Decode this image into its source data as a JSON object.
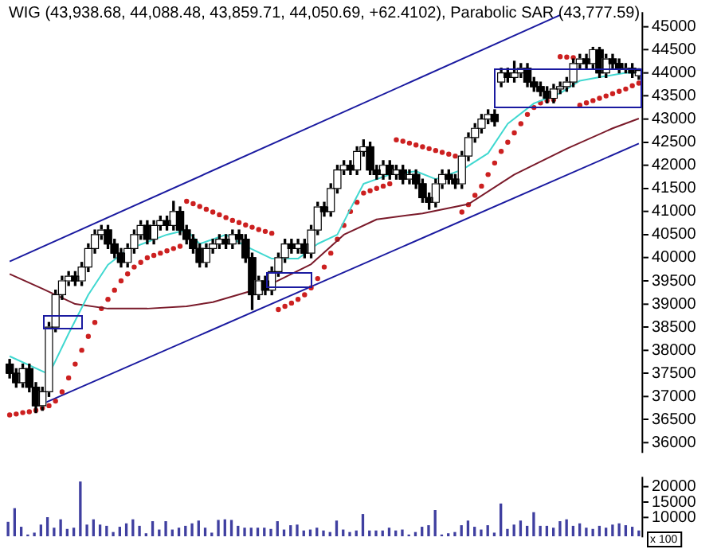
{
  "chart_data": [
    {
      "type": "candlestick",
      "title": "WIG (43,938.68, 44,088.48, 43,859.71, 44,050.69, +62.4102), Parabolic SAR (43,777.59)",
      "color": "#000000",
      "colors": [
        "#000000",
        "#000000",
        "#ffffff",
        "#000000",
        "#000000",
        "#ffffff",
        "#ffffff",
        "#ffffff",
        "#ffffff",
        "#ffffff",
        "#000000",
        "#ffffff",
        "#ffffff",
        "#ffffff",
        "#ffffff",
        "#000000",
        "#000000",
        "#000000",
        "#ffffff",
        "#ffffff",
        "#ffffff",
        "#000000",
        "#ffffff",
        "#ffffff",
        "#000000",
        "#ffffff",
        "#000000",
        "#000000",
        "#000000",
        "#000000",
        "#ffffff",
        "#ffffff",
        "#ffffff",
        "#000000",
        "#ffffff",
        "#000000",
        "#000000",
        "#000000",
        "#ffffff",
        "#000000",
        "#ffffff",
        "#ffffff",
        "#ffffff",
        "#000000",
        "#ffffff",
        "#000000",
        "#ffffff",
        "#ffffff",
        "#000000",
        "#ffffff",
        "#ffffff",
        "#ffffff",
        "#000000",
        "#ffffff",
        "#ffffff",
        "#000000",
        "#000000",
        "#ffffff",
        "#000000",
        "#ffffff",
        "#000000",
        "#ffffff",
        "#000000",
        "#000000",
        "#000000",
        "#ffffff",
        "#ffffff",
        "#000000",
        "#000000",
        "#ffffff",
        "#ffffff",
        "#ffffff",
        "#ffffff",
        "#ffffff",
        "#000000",
        "#ffffff",
        "#000000",
        "#ffffff",
        "#ffffff",
        "#000000",
        "#000000",
        "#000000",
        "#000000",
        "#ffffff",
        "#ffffff",
        "#ffffff",
        "#ffffff",
        "#ffffff",
        "#000000",
        "#ffffff",
        "#000000",
        "#ffffff",
        "#000000",
        "#000000",
        "#ffffff",
        "#000000",
        "#ffffff"
      ],
      "categories": [
        null,
        null,
        null,
        null,
        null,
        null,
        null,
        null,
        null,
        null,
        null,
        null,
        null,
        null,
        null,
        null,
        null,
        null,
        null,
        null,
        null,
        null,
        null,
        null,
        null,
        null,
        null,
        null,
        null,
        null,
        null,
        null,
        null,
        null,
        null,
        null,
        null,
        null,
        null,
        null,
        null,
        null,
        null,
        null,
        null,
        null,
        null,
        null,
        null,
        null,
        null,
        null,
        null,
        null,
        null,
        null,
        null,
        null,
        null,
        null,
        null,
        null,
        null,
        null,
        null,
        null,
        null,
        null,
        null,
        null,
        null,
        null,
        null,
        null,
        null,
        null,
        null,
        null,
        null,
        null,
        null,
        null,
        null,
        null,
        null,
        null,
        null,
        null,
        null,
        null,
        null,
        null,
        null,
        null,
        null,
        null,
        null
      ],
      "ohlc": [
        [
          37700,
          37800,
          37400,
          37500
        ],
        [
          37500,
          37600,
          37200,
          37300
        ],
        [
          37300,
          37700,
          37200,
          37600
        ],
        [
          37600,
          37700,
          37100,
          37200
        ],
        [
          37200,
          37300,
          36650,
          36800
        ],
        [
          36800,
          37200,
          36700,
          37100
        ],
        [
          37100,
          38600,
          37000,
          38500
        ],
        [
          38500,
          39300,
          38400,
          39200
        ],
        [
          39200,
          39600,
          39100,
          39500
        ],
        [
          39500,
          39700,
          39400,
          39600
        ],
        [
          39600,
          39700,
          39400,
          39500
        ],
        [
          39500,
          39900,
          39400,
          39800
        ],
        [
          39800,
          40300,
          39700,
          40200
        ],
        [
          40200,
          40600,
          40100,
          40500
        ],
        [
          40500,
          40700,
          40400,
          40600
        ],
        [
          40600,
          40700,
          40200,
          40300
        ],
        [
          40300,
          40400,
          40000,
          40100
        ],
        [
          40100,
          40200,
          39800,
          39900
        ],
        [
          39900,
          40300,
          39800,
          40200
        ],
        [
          40200,
          40600,
          40100,
          40500
        ],
        [
          40500,
          40800,
          40400,
          40700
        ],
        [
          40700,
          40800,
          40300,
          40400
        ],
        [
          40400,
          40800,
          40300,
          40700
        ],
        [
          40700,
          40900,
          40600,
          40800
        ],
        [
          40800,
          40900,
          40600,
          40700
        ],
        [
          40700,
          41220,
          40600,
          41000
        ],
        [
          41000,
          41100,
          40500,
          40600
        ],
        [
          40600,
          40700,
          40300,
          40400
        ],
        [
          40400,
          40500,
          40100,
          40200
        ],
        [
          40200,
          40300,
          39800,
          39900
        ],
        [
          39900,
          40300,
          39800,
          40200
        ],
        [
          40200,
          40400,
          40100,
          40300
        ],
        [
          40300,
          40500,
          40200,
          40400
        ],
        [
          40400,
          40500,
          40200,
          40300
        ],
        [
          40300,
          40600,
          40200,
          40500
        ],
        [
          40500,
          40600,
          40300,
          40400
        ],
        [
          40400,
          40500,
          39900,
          40000
        ],
        [
          40000,
          40100,
          38880,
          39200
        ],
        [
          39200,
          39600,
          39100,
          39500
        ],
        [
          39500,
          39600,
          39200,
          39300
        ],
        [
          39300,
          39800,
          39200,
          39700
        ],
        [
          39700,
          40100,
          39600,
          40000
        ],
        [
          40000,
          40400,
          39900,
          40300
        ],
        [
          40300,
          40400,
          40100,
          40200
        ],
        [
          40200,
          40400,
          40100,
          40300
        ],
        [
          40300,
          40400,
          40000,
          40100
        ],
        [
          40100,
          40700,
          40000,
          40600
        ],
        [
          40600,
          41200,
          40500,
          41100
        ],
        [
          41100,
          41200,
          40900,
          41000
        ],
        [
          41000,
          41600,
          40900,
          41500
        ],
        [
          41500,
          42000,
          41400,
          41900
        ],
        [
          41900,
          42100,
          41800,
          42000
        ],
        [
          42000,
          42100,
          41800,
          41900
        ],
        [
          41900,
          42400,
          41800,
          42300
        ],
        [
          42300,
          42550,
          42200,
          42400
        ],
        [
          42400,
          42500,
          41800,
          41900
        ],
        [
          41900,
          42000,
          41700,
          41800
        ],
        [
          41800,
          42100,
          41700,
          42000
        ],
        [
          42000,
          42100,
          41700,
          41800
        ],
        [
          41800,
          42000,
          41700,
          41900
        ],
        [
          41900,
          42000,
          41600,
          41700
        ],
        [
          41700,
          41900,
          41600,
          41800
        ],
        [
          41800,
          41900,
          41500,
          41600
        ],
        [
          41600,
          41700,
          41200,
          41300
        ],
        [
          41300,
          41400,
          41050,
          41200
        ],
        [
          41200,
          41700,
          41100,
          41600
        ],
        [
          41600,
          41900,
          41500,
          41800
        ],
        [
          41800,
          41900,
          41600,
          41700
        ],
        [
          41700,
          41800,
          41500,
          41600
        ],
        [
          41600,
          42300,
          41500,
          42200
        ],
        [
          42200,
          42700,
          42100,
          42600
        ],
        [
          42600,
          42900,
          42500,
          42800
        ],
        [
          42800,
          43100,
          42700,
          43000
        ],
        [
          43000,
          43200,
          42900,
          43100
        ],
        [
          43100,
          43200,
          42850,
          42950
        ],
        [
          43800,
          44100,
          43700,
          44000
        ],
        [
          44000,
          44100,
          43800,
          43900
        ],
        [
          43900,
          44250,
          43800,
          44000
        ],
        [
          44000,
          44200,
          43900,
          44100
        ],
        [
          44100,
          44200,
          43700,
          43800
        ],
        [
          43800,
          43900,
          43600,
          43700
        ],
        [
          43700,
          43800,
          43500,
          43600
        ],
        [
          43600,
          43700,
          43350,
          43450
        ],
        [
          43450,
          43750,
          43350,
          43650
        ],
        [
          43650,
          43800,
          43550,
          43700
        ],
        [
          43700,
          43900,
          43600,
          43800
        ],
        [
          43800,
          44300,
          43700,
          44200
        ],
        [
          44200,
          44400,
          44100,
          44300
        ],
        [
          44300,
          44400,
          44100,
          44200
        ],
        [
          44200,
          44550,
          44100,
          44500
        ],
        [
          44500,
          44550,
          43900,
          44000
        ],
        [
          44000,
          44400,
          43900,
          44300
        ],
        [
          44300,
          44400,
          44100,
          44200
        ],
        [
          44200,
          44300,
          44000,
          44100
        ],
        [
          44100,
          44200,
          44000,
          44100
        ],
        [
          44100,
          44200,
          43900,
          44000
        ],
        [
          43938.68,
          44088.48,
          43859.71,
          44050.69
        ]
      ],
      "series": [
        {
          "type": "line",
          "color": "#40d8d0",
          "values": [
            37870,
            null,
            null,
            null,
            null,
            null,
            37480,
            null,
            null,
            38360,
            null,
            null,
            39200,
            null,
            null,
            39850,
            null,
            null,
            40180,
            null,
            null,
            null,
            null,
            null,
            40500,
            null,
            null,
            40600,
            null,
            40300,
            null,
            null,
            null,
            40500,
            null,
            null,
            40250,
            null,
            null,
            null,
            39980,
            null,
            null,
            null,
            39980,
            null,
            null,
            40300,
            null,
            null,
            40500,
            null,
            41060,
            null,
            41600,
            null,
            null,
            null,
            41800,
            null,
            null,
            null,
            41870,
            null,
            null,
            41700,
            null,
            null,
            null,
            41900,
            null,
            null,
            null,
            42260,
            null,
            null,
            42900,
            null,
            null,
            null,
            43340,
            null,
            null,
            null,
            43560,
            null,
            null,
            43830,
            null,
            null,
            null,
            43930,
            null,
            null,
            44000,
            null,
            44000
          ]
        },
        {
          "type": "line",
          "color": "#7a1a2a",
          "values": [
            39650,
            null,
            null,
            null,
            null,
            39330,
            null,
            null,
            null,
            null,
            39000,
            null,
            null,
            null,
            null,
            38900,
            null,
            null,
            null,
            null,
            null,
            38900,
            null,
            null,
            null,
            null,
            null,
            38950,
            null,
            null,
            null,
            39040,
            null,
            null,
            null,
            null,
            null,
            null,
            null,
            39370,
            null,
            null,
            null,
            null,
            null,
            null,
            39860,
            null,
            null,
            null,
            null,
            40500,
            null,
            null,
            null,
            null,
            40830,
            null,
            null,
            null,
            null,
            null,
            null,
            40960,
            null,
            null,
            null,
            null,
            null,
            null,
            41160,
            null,
            null,
            null,
            null,
            null,
            null,
            41800,
            null,
            null,
            null,
            null,
            null,
            null,
            null,
            42360,
            null,
            null,
            null,
            null,
            null,
            null,
            42800,
            null,
            null,
            null,
            43010
          ]
        },
        {
          "type": "scatter",
          "color": "#cc2020",
          "marker": "circle",
          "values": [
            36600,
            36620,
            36650,
            36670,
            36700,
            36750,
            36800,
            36900,
            37100,
            37400,
            37700,
            38000,
            38300,
            38600,
            38900,
            39100,
            39300,
            39500,
            39650,
            39800,
            39900,
            40000,
            40050,
            40100,
            40150,
            40200,
            40250,
            41220,
            41170,
            41110,
            41050,
            40990,
            40930,
            40870,
            40810,
            40760,
            40710,
            40660,
            40610,
            40570,
            40530,
            38880,
            38950,
            39020,
            39100,
            39200,
            39350,
            39550,
            39800,
            40100,
            40400,
            40700,
            41000,
            41200,
            41400,
            41450,
            41500,
            41550,
            41600,
            42550,
            42520,
            42480,
            42440,
            42400,
            42360,
            42320,
            42280,
            42240,
            42200,
            40990,
            41150,
            41350,
            41550,
            41800,
            42050,
            42300,
            42500,
            42700,
            42900,
            43100,
            43250,
            43350,
            43400,
            43420,
            44350,
            44340,
            44330,
            43300,
            43350,
            43400,
            43450,
            43500,
            43550,
            43600,
            43650,
            43720,
            43777.59
          ]
        },
        {
          "type": "line",
          "color": "#1a1aa0",
          "values": [
            39920,
            null,
            null,
            null,
            null,
            null,
            null,
            null,
            null,
            null,
            null,
            null,
            null,
            null,
            null,
            null,
            null,
            null,
            null,
            null,
            null,
            null,
            null,
            null,
            null,
            null,
            null,
            null,
            null,
            null,
            null,
            null,
            null,
            null,
            null,
            null,
            null,
            null,
            null,
            null,
            null,
            null,
            null,
            null,
            null,
            null,
            null,
            null,
            null,
            null,
            null,
            null,
            null,
            null,
            null,
            null,
            null,
            null,
            null,
            null,
            null,
            null,
            null,
            null,
            null,
            null,
            null,
            null,
            null,
            null,
            null,
            null,
            null,
            null,
            null,
            null,
            null,
            null,
            null,
            null,
            null,
            null,
            null,
            null,
            45250,
            null,
            null,
            null,
            null,
            null,
            null,
            null,
            null,
            null,
            null,
            null,
            null
          ]
        },
        {
          "type": "line",
          "color": "#1a1aa0",
          "values": [
            null,
            null,
            null,
            null,
            null,
            36840,
            null,
            null,
            null,
            null,
            null,
            null,
            null,
            null,
            null,
            null,
            null,
            null,
            null,
            null,
            null,
            null,
            null,
            null,
            null,
            null,
            null,
            null,
            null,
            null,
            null,
            null,
            null,
            null,
            null,
            null,
            null,
            null,
            null,
            null,
            null,
            null,
            null,
            null,
            null,
            null,
            null,
            null,
            null,
            null,
            null,
            null,
            null,
            null,
            null,
            null,
            null,
            null,
            null,
            null,
            null,
            null,
            null,
            null,
            null,
            null,
            null,
            null,
            null,
            null,
            null,
            null,
            null,
            null,
            null,
            null,
            null,
            null,
            null,
            null,
            null,
            null,
            null,
            null,
            null,
            null,
            null,
            null,
            null,
            null,
            null,
            null,
            null,
            null,
            null,
            null,
            42470
          ]
        }
      ],
      "ylim": [
        35800,
        45300
      ],
      "yticks": [
        36000,
        36500,
        37000,
        37500,
        38000,
        38500,
        39000,
        39500,
        40000,
        40500,
        41000,
        41500,
        42000,
        42500,
        43000,
        43500,
        44000,
        44500,
        45000
      ],
      "tick_labels": "y",
      "legend": false
    },
    {
      "type": "bar",
      "color": "#3f3fa0",
      "annotations": [
        "x 100"
      ],
      "categories": [
        null,
        null,
        null,
        null,
        null,
        null,
        null,
        null,
        null,
        null,
        null,
        null,
        null,
        null,
        null,
        null,
        null,
        null,
        null,
        null,
        null,
        null,
        null,
        null,
        null,
        null,
        null,
        null,
        null,
        null,
        null,
        null,
        null,
        null,
        null,
        null,
        null,
        null,
        null,
        null,
        null,
        null,
        null,
        null,
        null,
        null,
        null,
        null,
        null,
        null,
        null,
        null,
        null,
        null,
        null,
        null,
        null,
        null,
        null,
        null,
        null,
        null,
        null,
        null,
        null,
        null,
        null,
        null,
        null,
        null,
        null,
        null,
        null,
        null,
        null,
        null,
        null,
        null,
        null,
        null,
        null,
        null,
        null,
        null,
        null,
        null,
        null,
        null,
        null,
        null,
        null,
        null,
        null,
        null,
        null,
        null,
        null
      ],
      "values": [
        8500,
        12900,
        6900,
        4400,
        5000,
        7600,
        10000,
        6600,
        9300,
        6200,
        6600,
        21500,
        7600,
        9300,
        7600,
        7200,
        5200,
        6900,
        8000,
        9300,
        7200,
        4800,
        8700,
        6000,
        8700,
        6000,
        6600,
        7200,
        8000,
        8900,
        6600,
        5000,
        9100,
        9300,
        9100,
        7200,
        6600,
        6600,
        6600,
        6600,
        6200,
        8700,
        6000,
        7400,
        7600,
        5700,
        6000,
        6600,
        5700,
        5200,
        8900,
        6000,
        5200,
        5700,
        11000,
        5700,
        5700,
        5700,
        6600,
        5700,
        6000,
        4400,
        5200,
        6900,
        7400,
        12300,
        4400,
        4800,
        5200,
        7400,
        8900,
        6900,
        6000,
        7400,
        5000,
        14400,
        6200,
        7600,
        8900,
        7200,
        11600,
        7200,
        7200,
        6600,
        8700,
        9300,
        7200,
        8000,
        6600,
        6200,
        7200,
        6600,
        7600,
        8000,
        7400,
        6900,
        5700
      ],
      "ylim": [
        4000,
        23000
      ],
      "yticks": [
        10000,
        15000,
        20000
      ],
      "tick_labels": "y",
      "legend": false
    }
  ]
}
